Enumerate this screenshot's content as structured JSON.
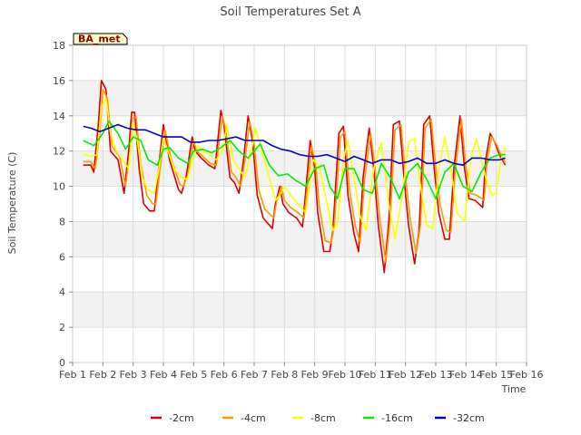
{
  "chart_data": {
    "type": "line",
    "title": "Soil Temperatures Set A",
    "xlabel": "Time",
    "ylabel": "Soil Temperature (C)",
    "badge": "BA_met",
    "xlim": [
      1,
      16
    ],
    "ylim": [
      0,
      18
    ],
    "x_tick_labels": [
      "Feb 1",
      "Feb 2",
      "Feb 3",
      "Feb 4",
      "Feb 5",
      "Feb 6",
      "Feb 7",
      "Feb 8",
      "Feb 9",
      "Feb 10",
      "Feb 11",
      "Feb 12",
      "Feb 13",
      "Feb 14",
      "Feb 15",
      "Feb 16"
    ],
    "y_ticks": [
      0,
      2,
      4,
      6,
      8,
      10,
      12,
      14,
      16,
      18
    ],
    "grid": true,
    "legend_position": "bottom",
    "series": [
      {
        "name": "-2cm",
        "color": "#dd0000",
        "x": [
          1.35,
          1.6,
          1.7,
          1.85,
          1.95,
          2.1,
          2.25,
          2.5,
          2.7,
          2.85,
          2.95,
          3.05,
          3.2,
          3.35,
          3.55,
          3.7,
          3.9,
          4.0,
          4.2,
          4.5,
          4.6,
          4.75,
          4.95,
          5.05,
          5.25,
          5.5,
          5.7,
          5.9,
          6.0,
          6.2,
          6.35,
          6.5,
          6.65,
          6.8,
          6.95,
          7.1,
          7.3,
          7.6,
          7.7,
          7.85,
          7.95,
          8.15,
          8.4,
          8.6,
          8.85,
          9.0,
          9.1,
          9.3,
          9.5,
          9.6,
          9.8,
          9.95,
          10.1,
          10.3,
          10.45,
          10.6,
          10.8,
          10.95,
          11.1,
          11.3,
          11.45,
          11.6,
          11.8,
          11.95,
          12.1,
          12.3,
          12.45,
          12.6,
          12.8,
          12.95,
          13.1,
          13.3,
          13.45,
          13.6,
          13.8,
          13.95,
          14.1,
          14.3,
          14.55,
          14.65,
          14.8,
          14.95,
          15.1,
          15.3
        ],
        "y": [
          11.2,
          11.2,
          10.8,
          13.5,
          16.0,
          15.5,
          12.0,
          11.5,
          9.6,
          12.0,
          14.2,
          14.2,
          11.0,
          9.0,
          8.6,
          8.6,
          12.0,
          13.5,
          11.5,
          9.8,
          9.6,
          10.5,
          12.8,
          12.0,
          11.6,
          11.2,
          11.0,
          14.3,
          13.5,
          10.5,
          10.2,
          9.6,
          11.5,
          14.0,
          12.5,
          9.5,
          8.2,
          7.6,
          9.0,
          10.0,
          9.0,
          8.5,
          8.2,
          7.7,
          12.6,
          11.0,
          8.5,
          6.3,
          6.3,
          7.5,
          13.0,
          13.4,
          9.5,
          7.3,
          6.3,
          10.5,
          13.3,
          11.0,
          7.8,
          5.1,
          8.0,
          13.5,
          13.7,
          10.5,
          7.8,
          5.6,
          7.5,
          13.5,
          14.0,
          11.0,
          8.5,
          7.0,
          7.0,
          11.0,
          14.0,
          11.0,
          9.3,
          9.2,
          8.8,
          11.5,
          13.0,
          12.5,
          11.8,
          11.2
        ]
      },
      {
        "name": "-4cm",
        "color": "#ff9900",
        "x": [
          1.35,
          1.6,
          1.75,
          1.9,
          2.0,
          2.15,
          2.3,
          2.55,
          2.75,
          2.9,
          3.0,
          3.1,
          3.25,
          3.45,
          3.65,
          3.75,
          3.95,
          4.05,
          4.25,
          4.55,
          4.65,
          4.8,
          5.0,
          5.1,
          5.3,
          5.55,
          5.75,
          5.95,
          6.05,
          6.25,
          6.4,
          6.55,
          6.7,
          6.85,
          7.0,
          7.15,
          7.35,
          7.65,
          7.75,
          7.9,
          8.0,
          8.2,
          8.45,
          8.65,
          8.9,
          9.05,
          9.15,
          9.35,
          9.55,
          9.65,
          9.85,
          10.0,
          10.15,
          10.35,
          10.5,
          10.65,
          10.85,
          11.0,
          11.15,
          11.35,
          11.5,
          11.65,
          11.85,
          12.0,
          12.15,
          12.35,
          12.5,
          12.65,
          12.85,
          13.0,
          13.15,
          13.35,
          13.5,
          13.65,
          13.85,
          14.0,
          14.15,
          14.35,
          14.6,
          14.7,
          14.85,
          15.0,
          15.15,
          15.3
        ],
        "y": [
          11.4,
          11.4,
          11.0,
          13.0,
          15.5,
          15.0,
          12.3,
          11.7,
          10.0,
          12.0,
          13.9,
          13.9,
          11.3,
          9.5,
          9.0,
          9.0,
          11.8,
          13.2,
          11.6,
          10.1,
          10.0,
          10.6,
          12.6,
          12.0,
          11.7,
          11.3,
          11.2,
          14.0,
          13.3,
          10.8,
          10.5,
          10.0,
          11.5,
          13.7,
          12.4,
          9.8,
          8.7,
          8.2,
          9.2,
          10.0,
          9.2,
          8.8,
          8.5,
          8.2,
          12.3,
          11.0,
          8.9,
          6.9,
          6.8,
          7.8,
          12.8,
          13.1,
          9.8,
          7.7,
          6.8,
          10.4,
          13.0,
          11.0,
          8.2,
          5.7,
          8.2,
          13.2,
          13.5,
          10.6,
          8.2,
          6.2,
          7.8,
          13.3,
          13.8,
          11.1,
          8.9,
          7.5,
          7.4,
          11.0,
          13.8,
          11.1,
          9.6,
          9.5,
          9.2,
          11.5,
          12.8,
          12.4,
          11.8,
          11.3
        ]
      },
      {
        "name": "-8cm",
        "color": "#ffff00",
        "x": [
          1.35,
          1.65,
          1.8,
          1.95,
          2.1,
          2.25,
          2.45,
          2.65,
          2.85,
          3.0,
          3.15,
          3.3,
          3.5,
          3.7,
          3.85,
          4.0,
          4.15,
          4.35,
          4.6,
          4.8,
          4.95,
          5.15,
          5.3,
          5.5,
          5.75,
          5.95,
          6.1,
          6.3,
          6.5,
          6.7,
          6.9,
          7.05,
          7.25,
          7.5,
          7.7,
          7.85,
          8.0,
          8.2,
          8.45,
          8.7,
          8.95,
          9.15,
          9.35,
          9.6,
          9.75,
          9.95,
          10.1,
          10.3,
          10.5,
          10.7,
          10.95,
          11.2,
          11.45,
          11.65,
          11.9,
          12.1,
          12.3,
          12.5,
          12.7,
          12.9,
          13.1,
          13.3,
          13.5,
          13.7,
          13.95,
          14.15,
          14.35,
          14.65,
          14.85,
          15.0,
          15.15,
          15.3
        ],
        "y": [
          11.8,
          11.7,
          11.8,
          14.5,
          15.0,
          13.0,
          12.0,
          11.5,
          11.0,
          13.6,
          12.5,
          10.5,
          9.8,
          9.6,
          11.0,
          12.8,
          12.0,
          11.0,
          10.5,
          10.4,
          11.5,
          12.3,
          12.0,
          11.8,
          11.5,
          12.0,
          13.5,
          11.5,
          11.0,
          10.5,
          12.0,
          13.3,
          12.0,
          10.5,
          9.2,
          9.5,
          10.0,
          9.5,
          9.0,
          8.5,
          11.5,
          11.2,
          9.5,
          7.5,
          7.8,
          11.5,
          12.6,
          10.5,
          8.3,
          7.5,
          11.0,
          12.5,
          9.0,
          7.0,
          9.5,
          12.5,
          12.7,
          10.0,
          7.8,
          7.6,
          11.0,
          12.8,
          11.0,
          8.5,
          8.0,
          11.5,
          12.7,
          10.5,
          9.5,
          9.6,
          11.5,
          12.2
        ]
      },
      {
        "name": "-16cm",
        "color": "#00ee00",
        "x": [
          1.35,
          1.7,
          2.0,
          2.2,
          2.5,
          2.75,
          3.0,
          3.25,
          3.5,
          3.8,
          4.0,
          4.2,
          4.5,
          4.8,
          5.0,
          5.3,
          5.6,
          5.9,
          6.2,
          6.5,
          6.8,
          7.0,
          7.2,
          7.5,
          7.8,
          8.1,
          8.4,
          8.7,
          9.0,
          9.3,
          9.5,
          9.75,
          10.0,
          10.3,
          10.6,
          10.9,
          11.2,
          11.5,
          11.8,
          12.1,
          12.4,
          12.7,
          13.0,
          13.3,
          13.6,
          13.9,
          14.2,
          14.5,
          14.8,
          15.1,
          15.3
        ],
        "y": [
          12.6,
          12.3,
          13.0,
          13.7,
          13.0,
          12.1,
          12.8,
          12.6,
          11.5,
          11.2,
          12.1,
          12.2,
          11.6,
          11.3,
          12.0,
          12.1,
          11.9,
          12.2,
          12.6,
          12.0,
          11.6,
          12.0,
          12.4,
          11.2,
          10.6,
          10.7,
          10.3,
          10.0,
          11.0,
          11.2,
          10.0,
          9.3,
          11.0,
          11.0,
          9.8,
          9.6,
          11.3,
          10.5,
          9.3,
          10.8,
          11.3,
          10.4,
          9.3,
          10.8,
          11.3,
          10.0,
          9.7,
          10.8,
          11.6,
          11.8,
          11.8
        ]
      },
      {
        "name": "-32cm",
        "color": "#0000cc",
        "x": [
          1.35,
          1.6,
          1.9,
          2.2,
          2.5,
          2.8,
          3.1,
          3.4,
          3.7,
          4.0,
          4.3,
          4.6,
          4.9,
          5.2,
          5.5,
          5.8,
          6.1,
          6.4,
          6.7,
          7.0,
          7.3,
          7.6,
          7.9,
          8.2,
          8.5,
          8.8,
          9.1,
          9.4,
          9.7,
          10.0,
          10.3,
          10.6,
          10.9,
          11.2,
          11.5,
          11.8,
          12.1,
          12.4,
          12.7,
          13.0,
          13.3,
          13.6,
          13.9,
          14.2,
          14.5,
          14.8,
          15.1,
          15.3
        ],
        "y": [
          13.4,
          13.3,
          13.1,
          13.3,
          13.5,
          13.3,
          13.2,
          13.2,
          13.0,
          12.8,
          12.8,
          12.8,
          12.5,
          12.5,
          12.6,
          12.6,
          12.7,
          12.8,
          12.6,
          12.6,
          12.6,
          12.3,
          12.1,
          12.0,
          11.8,
          11.7,
          11.7,
          11.8,
          11.6,
          11.4,
          11.7,
          11.5,
          11.3,
          11.5,
          11.5,
          11.3,
          11.4,
          11.6,
          11.3,
          11.3,
          11.5,
          11.3,
          11.2,
          11.6,
          11.6,
          11.5,
          11.5,
          11.6
        ]
      }
    ]
  }
}
